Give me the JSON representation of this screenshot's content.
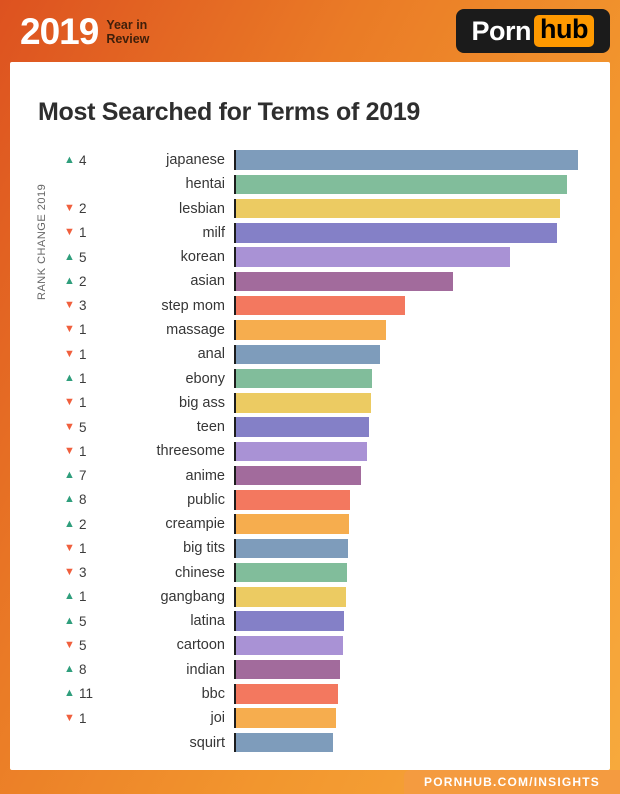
{
  "header": {
    "year": "2019",
    "subtitle_line1": "Year in",
    "subtitle_line2": "Review",
    "logo_part1": "Porn",
    "logo_part2": "hub"
  },
  "title": "Most Searched for Terms of 2019",
  "axis_label": "RANK CHANGE 2019",
  "footer": {
    "label": "PORNHUB.COM/INSIGHTS"
  },
  "colors": {
    "rank_up": "#2f9e7c",
    "rank_down": "#f05f3d",
    "hub_badge": "#ff9900",
    "footer_bg": "#f49b40",
    "axis_line": "#1d1d1d"
  },
  "chart_data": {
    "type": "bar",
    "orientation": "horizontal",
    "title": "Most Searched for Terms of 2019",
    "ylabel": "RANK CHANGE 2019",
    "value_note": "relative search volume as percent of top term, estimated from bar lengths",
    "xlim": [
      0,
      100
    ],
    "rows": [
      {
        "term": "japanese",
        "change_direction": "up",
        "change_amount": 4,
        "value": 100,
        "color": "#7e9cbb"
      },
      {
        "term": "hentai",
        "change_direction": "none",
        "change_amount": null,
        "value": 96.8,
        "color": "#81bd9b"
      },
      {
        "term": "lesbian",
        "change_direction": "down",
        "change_amount": 2,
        "value": 94.6,
        "color": "#eccb62"
      },
      {
        "term": "milf",
        "change_direction": "down",
        "change_amount": 1,
        "value": 94.0,
        "color": "#8480c7"
      },
      {
        "term": "korean",
        "change_direction": "up",
        "change_amount": 5,
        "value": 80.2,
        "color": "#a992d5"
      },
      {
        "term": "asian",
        "change_direction": "up",
        "change_amount": 2,
        "value": 63.4,
        "color": "#a26b9c"
      },
      {
        "term": "step mom",
        "change_direction": "down",
        "change_amount": 3,
        "value": 49.5,
        "color": "#f3785f"
      },
      {
        "term": "massage",
        "change_direction": "down",
        "change_amount": 1,
        "value": 43.8,
        "color": "#f6ad4e"
      },
      {
        "term": "anal",
        "change_direction": "down",
        "change_amount": 1,
        "value": 42.0,
        "color": "#7e9cbb"
      },
      {
        "term": "ebony",
        "change_direction": "up",
        "change_amount": 1,
        "value": 39.9,
        "color": "#81bd9b"
      },
      {
        "term": "big ass",
        "change_direction": "down",
        "change_amount": 1,
        "value": 39.6,
        "color": "#eccb62"
      },
      {
        "term": "teen",
        "change_direction": "down",
        "change_amount": 5,
        "value": 38.8,
        "color": "#8480c7"
      },
      {
        "term": "threesome",
        "change_direction": "down",
        "change_amount": 1,
        "value": 38.4,
        "color": "#a992d5"
      },
      {
        "term": "anime",
        "change_direction": "up",
        "change_amount": 7,
        "value": 36.6,
        "color": "#a26b9c"
      },
      {
        "term": "public",
        "change_direction": "up",
        "change_amount": 8,
        "value": 33.4,
        "color": "#f3785f"
      },
      {
        "term": "creampie",
        "change_direction": "up",
        "change_amount": 2,
        "value": 33.0,
        "color": "#f6ad4e"
      },
      {
        "term": "big tits",
        "change_direction": "down",
        "change_amount": 1,
        "value": 32.7,
        "color": "#7e9cbb"
      },
      {
        "term": "chinese",
        "change_direction": "down",
        "change_amount": 3,
        "value": 32.4,
        "color": "#81bd9b"
      },
      {
        "term": "gangbang",
        "change_direction": "up",
        "change_amount": 1,
        "value": 32.1,
        "color": "#eccb62"
      },
      {
        "term": "latina",
        "change_direction": "up",
        "change_amount": 5,
        "value": 31.7,
        "color": "#8480c7"
      },
      {
        "term": "cartoon",
        "change_direction": "down",
        "change_amount": 5,
        "value": 31.4,
        "color": "#a992d5"
      },
      {
        "term": "indian",
        "change_direction": "up",
        "change_amount": 8,
        "value": 30.4,
        "color": "#a26b9c"
      },
      {
        "term": "bbc",
        "change_direction": "up",
        "change_amount": 11,
        "value": 29.7,
        "color": "#f3785f"
      },
      {
        "term": "joi",
        "change_direction": "down",
        "change_amount": 1,
        "value": 29.2,
        "color": "#f6ad4e"
      },
      {
        "term": "squirt",
        "change_direction": "none",
        "change_amount": null,
        "value": 28.4,
        "color": "#7e9cbb"
      }
    ]
  }
}
